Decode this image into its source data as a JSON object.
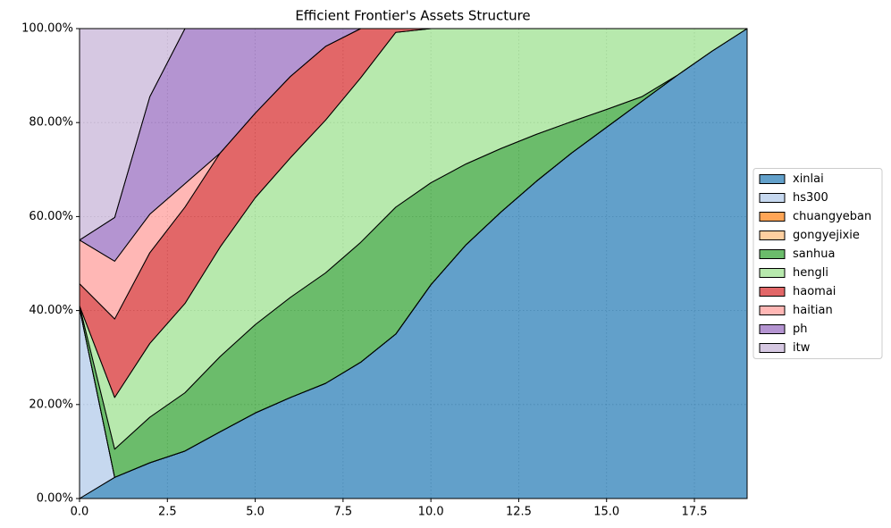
{
  "chart_data": {
    "type": "stacked_area",
    "title": "Efficient Frontier's Assets Structure",
    "x": [
      0,
      1,
      2,
      3,
      4,
      5,
      6,
      7,
      8,
      9,
      10,
      11,
      12,
      13,
      14,
      15,
      16,
      17,
      18,
      19
    ],
    "series": [
      {
        "name": "xinlai",
        "color": "#1f77b4",
        "values": [
          0,
          4.5,
          7.6,
          10.1,
          14.2,
          18.2,
          21.5,
          24.5,
          29,
          35,
          45.5,
          54,
          61,
          67.5,
          73.5,
          79,
          84.5,
          90,
          95.2,
          100
        ]
      },
      {
        "name": "hs300",
        "color": "#aec7e8",
        "values": [
          40.5,
          0,
          0,
          0,
          0,
          0,
          0,
          0,
          0,
          0,
          0,
          0,
          0,
          0,
          0,
          0,
          0,
          0,
          0,
          0
        ]
      },
      {
        "name": "chuangyeban",
        "color": "#ff7f0e",
        "values": [
          0,
          0,
          0,
          0,
          0,
          0,
          0,
          0,
          0,
          0,
          0,
          0,
          0,
          0,
          0,
          0,
          0,
          0,
          0,
          0
        ]
      },
      {
        "name": "gongyejixie",
        "color": "#ffbb78",
        "values": [
          0,
          0,
          0,
          0,
          0,
          0,
          0,
          0,
          0,
          0,
          0,
          0,
          0,
          0,
          0,
          0,
          0,
          0,
          0,
          0
        ]
      },
      {
        "name": "sanhua",
        "color": "#2ca02c",
        "values": [
          0.5,
          6,
          9.7,
          12.4,
          16,
          18.8,
          21.3,
          23.5,
          25.5,
          27,
          21.7,
          17.2,
          13.5,
          10,
          6.7,
          3.8,
          1,
          0,
          0,
          0
        ]
      },
      {
        "name": "hengli",
        "color": "#98df8a",
        "values": [
          0,
          11,
          15.7,
          19,
          23.3,
          27,
          29.7,
          32.5,
          35,
          37.2,
          32.8,
          28.8,
          25.5,
          22.5,
          19.8,
          17.2,
          14.5,
          10,
          4.8,
          0
        ]
      },
      {
        "name": "haomai",
        "color": "#d62728",
        "values": [
          4.7,
          16.7,
          19.3,
          20.5,
          20,
          18,
          17.3,
          15.7,
          10.5,
          0.8,
          0,
          0,
          0,
          0,
          0,
          0,
          0,
          0,
          0,
          0
        ]
      },
      {
        "name": "haitian",
        "color": "#ff9896",
        "values": [
          9.3,
          12.3,
          8.2,
          5,
          0,
          0,
          0,
          0,
          0,
          0,
          0,
          0,
          0,
          0,
          0,
          0,
          0,
          0,
          0,
          0
        ]
      },
      {
        "name": "ph",
        "color": "#9467bd",
        "values": [
          0,
          9.3,
          25,
          33,
          26.5,
          18,
          10.2,
          3.8,
          0,
          0,
          0,
          0,
          0,
          0,
          0,
          0,
          0,
          0,
          0,
          0
        ]
      },
      {
        "name": "itw",
        "color": "#c5b0d5",
        "values": [
          45,
          40.2,
          14.5,
          0,
          0,
          0,
          0,
          0,
          0,
          0,
          0,
          0,
          0,
          0,
          0,
          0,
          0,
          0,
          0,
          0
        ]
      }
    ],
    "alpha": 0.7,
    "xlim": [
      0,
      19
    ],
    "xticks": [
      {
        "value": 0,
        "label": "0.0"
      },
      2.5,
      {
        "value": 5,
        "label": "5.0"
      },
      7.5,
      {
        "value": 10,
        "label": "10.0"
      },
      12.5,
      {
        "value": 15,
        "label": "15.0"
      },
      17.5
    ],
    "ylim": [
      0,
      100
    ],
    "yticks": [
      {
        "value": 0,
        "label": "0.00%"
      },
      {
        "value": 20,
        "label": "20.00%"
      },
      {
        "value": 40,
        "label": "40.00%"
      },
      {
        "value": 60,
        "label": "60.00%"
      },
      {
        "value": 80,
        "label": "80.00%"
      },
      {
        "value": 100,
        "label": "100.00%"
      }
    ],
    "grid": true,
    "legend": "right"
  }
}
